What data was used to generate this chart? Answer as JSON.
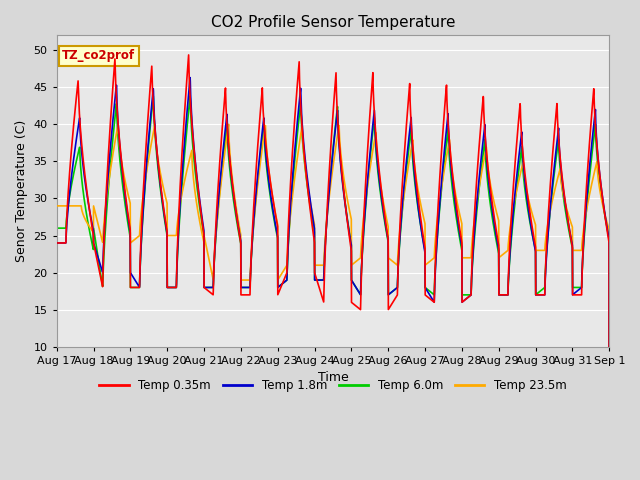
{
  "title": "CO2 Profile Sensor Temperature",
  "xlabel": "Time",
  "ylabel": "Senor Temperature (C)",
  "ylim": [
    10,
    52
  ],
  "yticks": [
    10,
    15,
    20,
    25,
    30,
    35,
    40,
    45,
    50
  ],
  "background_color": "#e8e8e8",
  "legend_label": "TZ_co2prof",
  "series_labels": [
    "Temp 0.35m",
    "Temp 1.8m",
    "Temp 6.0m",
    "Temp 23.5m"
  ],
  "series_colors": [
    "#ff0000",
    "#0000cc",
    "#00cc00",
    "#ffaa00"
  ],
  "line_width": 1.2,
  "tick_labels": [
    "Aug 17",
    "Aug 18",
    "Aug 19",
    "Aug 20",
    "Aug 21",
    "Aug 22",
    "Aug 23",
    "Aug 24",
    "Aug 25",
    "Aug 26",
    "Aug 27",
    "Aug 28",
    "Aug 29",
    "Aug 30",
    "Aug 31",
    "Sep 1"
  ],
  "peak_temps_red": [
    46,
    49,
    48,
    49.5,
    45,
    45,
    48.5,
    47,
    47,
    45.5,
    45.5,
    44,
    43,
    43,
    45,
    45.5
  ],
  "peak_temps_blue": [
    41,
    45.5,
    45,
    46.5,
    41.5,
    41,
    45,
    42,
    42,
    41,
    41.5,
    40,
    39,
    39.5,
    42,
    42
  ],
  "peak_temps_green": [
    37,
    43,
    44,
    44,
    40,
    40,
    43,
    42.5,
    41,
    39.5,
    39.5,
    38,
    37,
    38,
    40,
    39.5
  ],
  "peak_temps_orange": [
    29,
    40,
    40,
    36.5,
    40,
    40,
    40,
    40,
    39,
    38,
    38,
    37,
    35,
    34,
    35,
    38
  ],
  "trough_temps_red": [
    24,
    18,
    18,
    18,
    17,
    17,
    20,
    16,
    15,
    17,
    16,
    17,
    17,
    17,
    17,
    17
  ],
  "trough_temps_blue": [
    24,
    20,
    18,
    18,
    18,
    18,
    19,
    19,
    17,
    18,
    16,
    17,
    17,
    17,
    18,
    18
  ],
  "trough_temps_green": [
    26,
    18,
    18,
    18,
    18,
    18,
    19,
    19,
    17,
    18,
    17,
    17,
    17,
    18,
    18,
    19
  ],
  "trough_temps_orange": [
    29,
    24,
    25,
    25,
    19,
    19,
    21,
    21,
    22,
    21,
    22,
    22,
    23,
    23,
    23,
    22
  ],
  "peak_hour_red": 14,
  "peak_hour_blue": 15,
  "peak_hour_green": 15,
  "peak_hour_orange": 16,
  "trough_hour": 6
}
